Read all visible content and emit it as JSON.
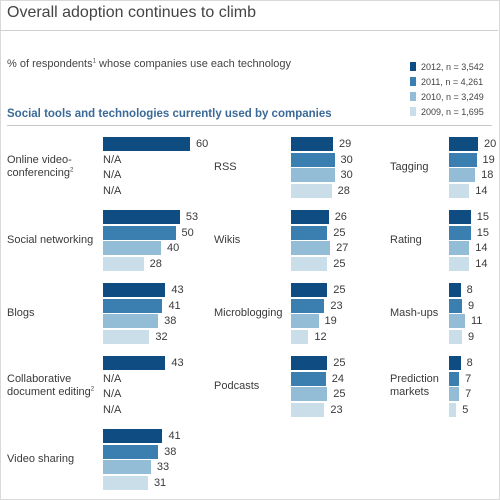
{
  "title": "Overall adoption continues to climb",
  "subtitle": "% of respondents",
  "subtitle_note": "1",
  "subtitle_tail": " whose companies use each technology",
  "section_heading": "Social tools and technologies currently used by companies",
  "colors": {
    "2012": "#0f4c81",
    "2011": "#3b7fb0",
    "2010": "#93bcd7",
    "2009": "#cadeea"
  },
  "chart_data": {
    "type": "bar",
    "orientation": "horizontal",
    "title": "Social tools and technologies currently used by companies",
    "series": [
      {
        "name": "2012, n = 3,542"
      },
      {
        "name": "2011, n = 4,261"
      },
      {
        "name": "2010, n = 3,249"
      },
      {
        "name": "2009, n = 1,695"
      }
    ],
    "categories": [
      {
        "label": [
          "Online video-",
          "conferencing"
        ],
        "note": "2",
        "values": [
          60,
          "N/A",
          "N/A",
          "N/A"
        ]
      },
      {
        "label": [
          "Social networking"
        ],
        "values": [
          53,
          50,
          40,
          28
        ]
      },
      {
        "label": [
          "Blogs"
        ],
        "values": [
          43,
          41,
          38,
          32
        ]
      },
      {
        "label": [
          "Collaborative",
          "document editing"
        ],
        "note": "2",
        "values": [
          43,
          "N/A",
          "N/A",
          "N/A"
        ]
      },
      {
        "label": [
          "Video sharing"
        ],
        "values": [
          41,
          38,
          33,
          31
        ]
      },
      {
        "label": [
          "RSS"
        ],
        "values": [
          29,
          30,
          30,
          28
        ]
      },
      {
        "label": [
          "Wikis"
        ],
        "values": [
          26,
          25,
          27,
          25
        ]
      },
      {
        "label": [
          "Microblogging"
        ],
        "values": [
          25,
          23,
          19,
          12
        ]
      },
      {
        "label": [
          "Podcasts"
        ],
        "values": [
          25,
          24,
          25,
          23
        ]
      },
      {
        "label": [
          "Tagging"
        ],
        "values": [
          20,
          19,
          18,
          14
        ]
      },
      {
        "label": [
          "Rating"
        ],
        "values": [
          15,
          15,
          14,
          14
        ]
      },
      {
        "label": [
          "Mash-ups"
        ],
        "values": [
          8,
          9,
          11,
          9
        ]
      },
      {
        "label": [
          "Prediction",
          "markets"
        ],
        "values": [
          8,
          7,
          7,
          5
        ]
      }
    ]
  }
}
